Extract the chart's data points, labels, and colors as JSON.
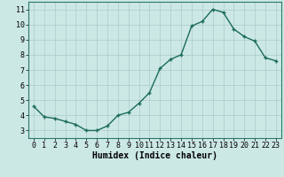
{
  "x": [
    0,
    1,
    2,
    3,
    4,
    5,
    6,
    7,
    8,
    9,
    10,
    11,
    12,
    13,
    14,
    15,
    16,
    17,
    18,
    19,
    20,
    21,
    22,
    23
  ],
  "y": [
    4.6,
    3.9,
    3.8,
    3.6,
    3.4,
    3.0,
    3.0,
    3.3,
    4.0,
    4.2,
    4.8,
    5.5,
    7.1,
    7.7,
    8.0,
    9.9,
    10.2,
    11.0,
    10.8,
    9.7,
    9.2,
    8.9,
    7.8,
    7.6
  ],
  "line_color": "#1a6b5a",
  "marker": "+",
  "marker_size": 3,
  "linewidth": 1.0,
  "xlabel": "Humidex (Indice chaleur)",
  "xlabel_fontsize": 7,
  "xlabel_weight": "bold",
  "bg_color": "#cce8e5",
  "grid_color": "#b0d0cc",
  "tick_fontsize": 6,
  "xlim": [
    -0.5,
    23.5
  ],
  "ylim": [
    2.5,
    11.5
  ],
  "yticks": [
    3,
    4,
    5,
    6,
    7,
    8,
    9,
    10,
    11
  ],
  "xticks": [
    0,
    1,
    2,
    3,
    4,
    5,
    6,
    7,
    8,
    9,
    10,
    11,
    12,
    13,
    14,
    15,
    16,
    17,
    18,
    19,
    20,
    21,
    22,
    23
  ],
  "spine_color": "#2a7a6a"
}
